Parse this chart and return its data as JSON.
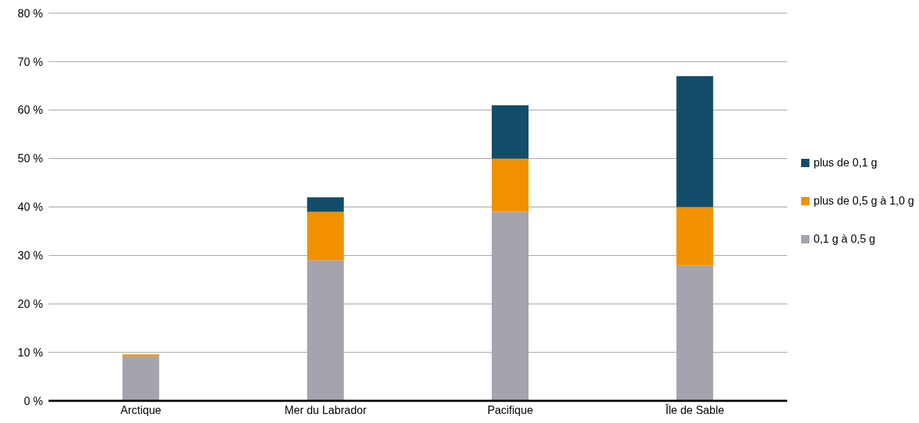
{
  "chart_data": {
    "type": "bar",
    "stacked": true,
    "categories": [
      "Arctique",
      "Mer du Labrador",
      "Pacifique",
      "Île de Sable"
    ],
    "series": [
      {
        "name": "0,1 g à 0,5 g",
        "color": "#a5a3ad",
        "values": [
          9.2,
          29,
          39,
          28
        ]
      },
      {
        "name": "plus de 0,5 g à 1,0 g",
        "color": "#f29100",
        "values": [
          0.4,
          10,
          11,
          12
        ]
      },
      {
        "name": "plus de 0,1 g",
        "color": "#124e6a",
        "values": [
          0,
          3,
          11,
          27
        ]
      }
    ],
    "ylim": [
      0,
      80
    ],
    "yticks": [
      {
        "value": 0,
        "label": "0 %"
      },
      {
        "value": 10,
        "label": "10 %"
      },
      {
        "value": 20,
        "label": "20 %"
      },
      {
        "value": 30,
        "label": "30 %"
      },
      {
        "value": 40,
        "label": "40 %"
      },
      {
        "value": 50,
        "label": "50 %"
      },
      {
        "value": 60,
        "label": "60 %"
      },
      {
        "value": 70,
        "label": "70 %"
      },
      {
        "value": 80,
        "label": "80 %"
      }
    ],
    "grid": "y",
    "legend": "right"
  }
}
